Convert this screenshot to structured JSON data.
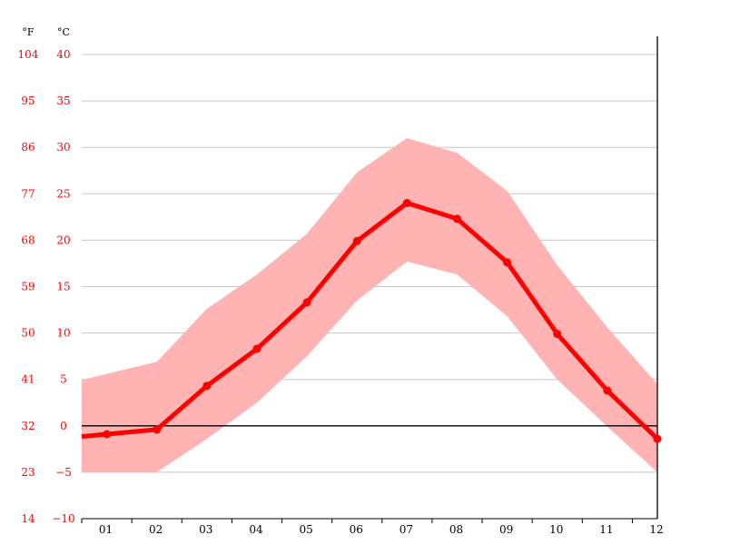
{
  "chart_data": {
    "type": "line",
    "title": "",
    "xlabel": "",
    "ylabel": "",
    "units": {
      "fahrenheit": "°F",
      "celsius": "°C"
    },
    "categories": [
      "01",
      "02",
      "03",
      "04",
      "05",
      "06",
      "07",
      "08",
      "09",
      "10",
      "11",
      "12"
    ],
    "y_ticks_c": [
      "40",
      "35",
      "30",
      "25",
      "20",
      "15",
      "10",
      "5",
      "0",
      "−5",
      "−10"
    ],
    "y_ticks_f": [
      "104",
      "95",
      "86",
      "77",
      "68",
      "59",
      "50",
      "41",
      "32",
      "23",
      "14"
    ],
    "ylim": [
      -10,
      40
    ],
    "grid": true,
    "series": [
      {
        "values": [
          -0.9,
          -0.4,
          4.3,
          8.3,
          13.3,
          19.9,
          24.0,
          22.3,
          17.6,
          9.9,
          3.8,
          -1.4
        ]
      }
    ],
    "band": {
      "upper": [
        5.6,
        6.9,
        12.6,
        16.3,
        20.7,
        27.3,
        31.0,
        29.4,
        25.3,
        17.3,
        10.6,
        4.5
      ],
      "lower": [
        -5.0,
        -5.0,
        -1.4,
        2.5,
        7.5,
        13.5,
        17.7,
        16.3,
        11.8,
        5.0,
        -0.1,
        -5.0
      ]
    },
    "colors": {
      "line": "#ff0000",
      "band": "#ffb3b3",
      "grid": "#c8c8c8",
      "zero_line": "#000000",
      "tick_text": "#ff0000",
      "x_tick_text": "#000000",
      "axis": "#000000"
    }
  }
}
